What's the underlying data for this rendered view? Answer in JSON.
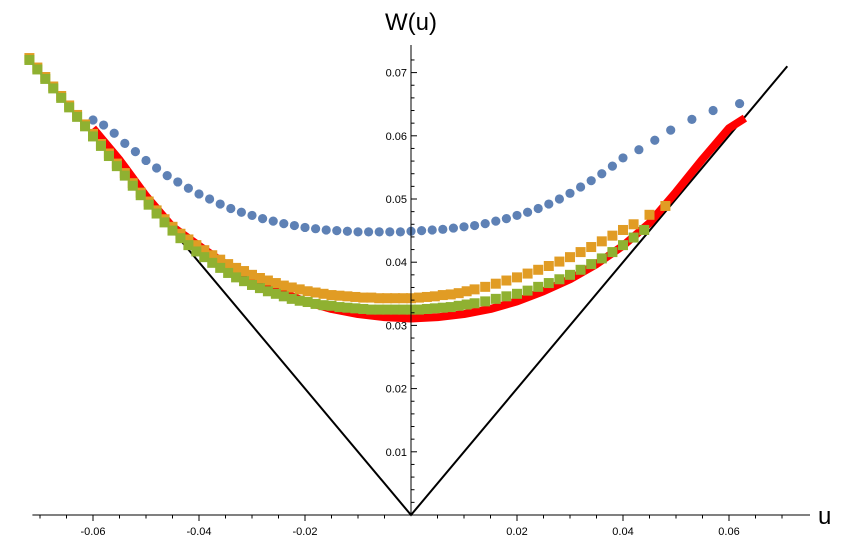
{
  "chart_data": {
    "type": "scatter",
    "title": "",
    "xlabel": "u",
    "ylabel": "W(u)",
    "xlim": [
      -0.072,
      0.072
    ],
    "ylim": [
      0,
      0.073
    ],
    "x_ticks": [
      -0.06,
      -0.04,
      -0.02,
      0.02,
      0.04,
      0.06
    ],
    "x_tick_labels": [
      "-0.06",
      "-0.04",
      "-0.02",
      "0.02",
      "0.04",
      "0.06"
    ],
    "y_ticks": [
      0.01,
      0.02,
      0.03,
      0.04,
      0.05,
      0.06,
      0.07
    ],
    "y_tick_labels": [
      "0.01",
      "0.02",
      "0.03",
      "0.04",
      "0.05",
      "0.06",
      "0.07"
    ],
    "grid": false,
    "legend": "none",
    "series": [
      {
        "kind": "line",
        "color": "#000000",
        "x": [
          -0.072,
          0,
          0.071
        ],
        "y": [
          0.072,
          0,
          0.071
        ]
      },
      {
        "kind": "thick-curve",
        "color": "#ff0000",
        "x": [
          -0.06,
          -0.055,
          -0.05,
          -0.045,
          -0.04,
          -0.035,
          -0.03,
          -0.025,
          -0.02,
          -0.015,
          -0.01,
          -0.005,
          0,
          0.005,
          0.01,
          0.015,
          0.02,
          0.025,
          0.03,
          0.035,
          0.04,
          0.045,
          0.05,
          0.055,
          0.06,
          0.063
        ],
        "y": [
          0.0612,
          0.0562,
          0.0505,
          0.0456,
          0.0426,
          0.0397,
          0.0373,
          0.0354,
          0.0338,
          0.0326,
          0.0318,
          0.0313,
          0.0311,
          0.0313,
          0.0318,
          0.0326,
          0.0338,
          0.0354,
          0.0373,
          0.0397,
          0.0426,
          0.0462,
          0.0511,
          0.0563,
          0.0612,
          0.0628
        ]
      },
      {
        "kind": "points-circle",
        "color": "#5e81b5",
        "x": [
          -0.06,
          -0.058,
          -0.056,
          -0.054,
          -0.052,
          -0.05,
          -0.048,
          -0.046,
          -0.044,
          -0.042,
          -0.04,
          -0.038,
          -0.036,
          -0.034,
          -0.032,
          -0.03,
          -0.028,
          -0.026,
          -0.024,
          -0.022,
          -0.02,
          -0.018,
          -0.016,
          -0.014,
          -0.012,
          -0.01,
          -0.008,
          -0.006,
          -0.004,
          -0.002,
          0,
          0.002,
          0.004,
          0.006,
          0.008,
          0.01,
          0.012,
          0.014,
          0.016,
          0.018,
          0.02,
          0.022,
          0.024,
          0.026,
          0.028,
          0.03,
          0.032,
          0.034,
          0.036,
          0.038,
          0.04,
          0.043,
          0.046,
          0.049,
          0.053,
          0.057,
          0.062
        ],
        "y": [
          0.0625,
          0.0617,
          0.0604,
          0.0588,
          0.0575,
          0.0561,
          0.0549,
          0.0537,
          0.0527,
          0.0517,
          0.0508,
          0.05,
          0.0492,
          0.0485,
          0.0479,
          0.0474,
          0.0469,
          0.0465,
          0.0461,
          0.0458,
          0.0455,
          0.0453,
          0.0451,
          0.045,
          0.0449,
          0.0448,
          0.0448,
          0.0448,
          0.0448,
          0.0448,
          0.0449,
          0.045,
          0.0451,
          0.0452,
          0.0454,
          0.0456,
          0.0458,
          0.0461,
          0.0465,
          0.0469,
          0.0474,
          0.0479,
          0.0485,
          0.0492,
          0.05,
          0.0509,
          0.0519,
          0.0529,
          0.054,
          0.0552,
          0.0565,
          0.0578,
          0.0593,
          0.0609,
          0.0626,
          0.064,
          0.0651
        ]
      },
      {
        "kind": "points-square",
        "color": "#e19c24",
        "x": [
          -0.072,
          -0.0705,
          -0.069,
          -0.0675,
          -0.066,
          -0.0645,
          -0.063,
          -0.0615,
          -0.06,
          -0.0585,
          -0.057,
          -0.0555,
          -0.054,
          -0.0525,
          -0.051,
          -0.0495,
          -0.048,
          -0.0465,
          -0.045,
          -0.0435,
          -0.042,
          -0.0405,
          -0.039,
          -0.0375,
          -0.036,
          -0.0345,
          -0.033,
          -0.0315,
          -0.03,
          -0.0285,
          -0.027,
          -0.0255,
          -0.024,
          -0.0225,
          -0.021,
          -0.0195,
          -0.018,
          -0.0165,
          -0.015,
          -0.0135,
          -0.012,
          -0.0105,
          -0.009,
          -0.0075,
          -0.006,
          -0.0045,
          -0.003,
          -0.0015,
          0,
          0.0015,
          0.003,
          0.0045,
          0.006,
          0.0075,
          0.009,
          0.0105,
          0.012,
          0.014,
          0.016,
          0.018,
          0.02,
          0.022,
          0.024,
          0.026,
          0.028,
          0.03,
          0.032,
          0.034,
          0.036,
          0.038,
          0.04,
          0.042,
          0.045,
          0.048
        ],
        "y": [
          0.0723,
          0.0708,
          0.0693,
          0.0678,
          0.0663,
          0.0648,
          0.0633,
          0.0618,
          0.0603,
          0.0587,
          0.0572,
          0.0556,
          0.0541,
          0.0525,
          0.051,
          0.0496,
          0.0482,
          0.0468,
          0.0456,
          0.0445,
          0.0436,
          0.0427,
          0.0419,
          0.0411,
          0.0404,
          0.0397,
          0.0391,
          0.0386,
          0.038,
          0.0375,
          0.0371,
          0.0367,
          0.0363,
          0.036,
          0.0357,
          0.0354,
          0.0352,
          0.035,
          0.0348,
          0.0347,
          0.0346,
          0.0345,
          0.0344,
          0.0344,
          0.0343,
          0.0343,
          0.0343,
          0.0343,
          0.0343,
          0.0344,
          0.0345,
          0.0346,
          0.0348,
          0.0349,
          0.0351,
          0.0354,
          0.0357,
          0.0361,
          0.0366,
          0.0371,
          0.0376,
          0.0382,
          0.0388,
          0.0394,
          0.0401,
          0.0408,
          0.0416,
          0.0424,
          0.0433,
          0.0442,
          0.0451,
          0.046,
          0.0475,
          0.0489
        ]
      },
      {
        "kind": "points-square",
        "color": "#8fb131",
        "x": [
          -0.072,
          -0.0705,
          -0.069,
          -0.0675,
          -0.066,
          -0.0645,
          -0.063,
          -0.0615,
          -0.06,
          -0.0585,
          -0.057,
          -0.0555,
          -0.054,
          -0.0525,
          -0.051,
          -0.0495,
          -0.048,
          -0.0465,
          -0.045,
          -0.0435,
          -0.042,
          -0.0405,
          -0.039,
          -0.0375,
          -0.036,
          -0.0345,
          -0.033,
          -0.0315,
          -0.03,
          -0.0285,
          -0.027,
          -0.0255,
          -0.024,
          -0.0225,
          -0.021,
          -0.0195,
          -0.018,
          -0.0165,
          -0.015,
          -0.0135,
          -0.012,
          -0.0105,
          -0.009,
          -0.0075,
          -0.006,
          -0.0045,
          -0.003,
          -0.0015,
          0,
          0.0015,
          0.003,
          0.0045,
          0.006,
          0.0075,
          0.009,
          0.0105,
          0.012,
          0.014,
          0.016,
          0.018,
          0.02,
          0.022,
          0.024,
          0.026,
          0.028,
          0.03,
          0.032,
          0.034,
          0.036,
          0.038,
          0.04,
          0.042,
          0.044
        ],
        "y": [
          0.072,
          0.0705,
          0.069,
          0.0675,
          0.066,
          0.0645,
          0.063,
          0.0615,
          0.0599,
          0.0584,
          0.0568,
          0.0552,
          0.0537,
          0.0521,
          0.0506,
          0.0491,
          0.0477,
          0.0463,
          0.045,
          0.0438,
          0.0427,
          0.0417,
          0.0408,
          0.0399,
          0.0391,
          0.0383,
          0.0376,
          0.037,
          0.0364,
          0.0359,
          0.0354,
          0.035,
          0.0346,
          0.0342,
          0.0339,
          0.0337,
          0.0334,
          0.0332,
          0.0331,
          0.0329,
          0.0328,
          0.0327,
          0.0326,
          0.0325,
          0.0325,
          0.0325,
          0.0325,
          0.0325,
          0.0325,
          0.0325,
          0.0326,
          0.0327,
          0.0328,
          0.0329,
          0.0331,
          0.0333,
          0.0335,
          0.0338,
          0.0342,
          0.0346,
          0.035,
          0.0355,
          0.0361,
          0.0367,
          0.0373,
          0.038,
          0.0388,
          0.0397,
          0.0406,
          0.0416,
          0.0427,
          0.0439,
          0.0451
        ]
      }
    ]
  }
}
